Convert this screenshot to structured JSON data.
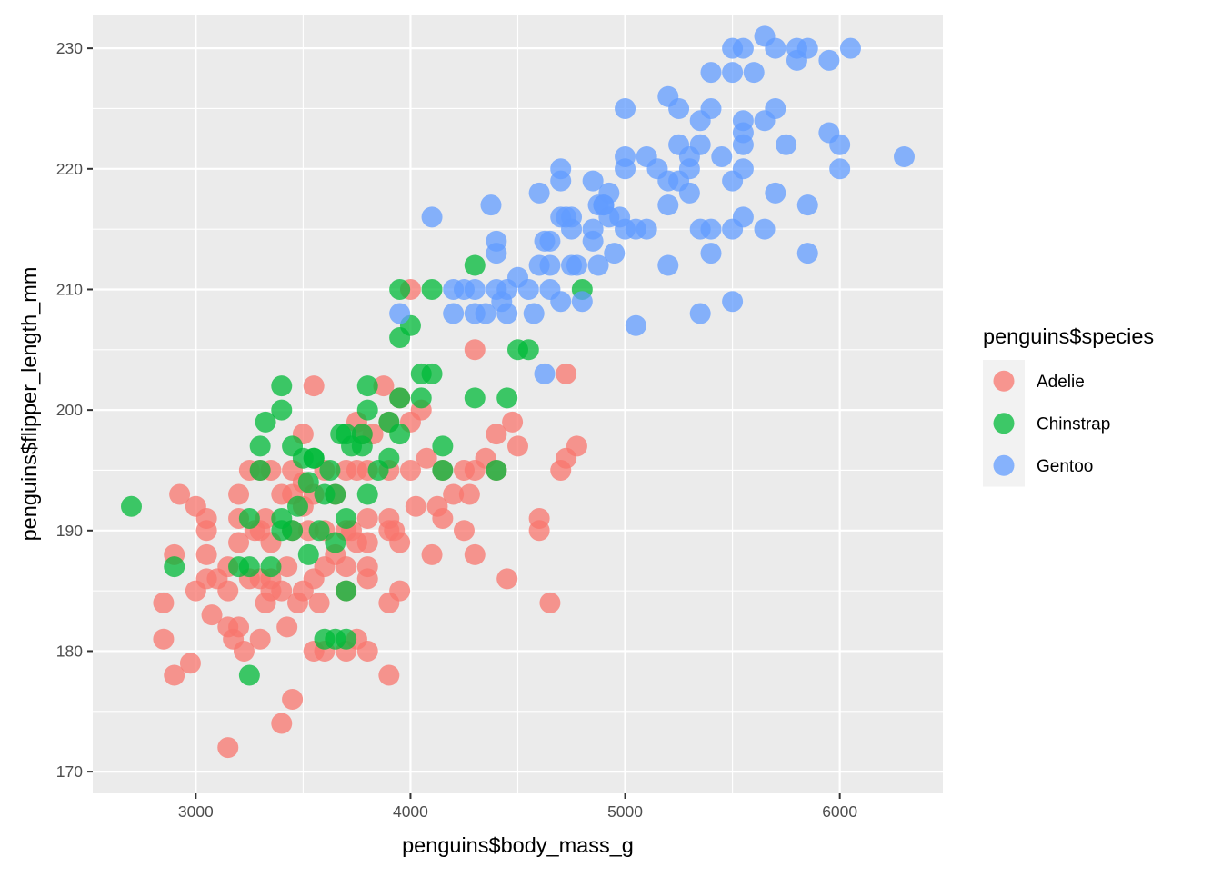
{
  "chart_data": {
    "type": "scatter",
    "title": "",
    "xlabel": "penguins$body_mass_g",
    "ylabel": "penguins$flipper_length_mm",
    "xlim": [
      2520,
      6480
    ],
    "ylim": [
      168.2,
      232.8
    ],
    "xticks": [
      3000,
      4000,
      5000,
      6000
    ],
    "xtick_labels": [
      "3000",
      "4000",
      "5000",
      "6000"
    ],
    "yticks": [
      170,
      180,
      190,
      200,
      210,
      220,
      230
    ],
    "ytick_labels": [
      "170",
      "180",
      "190",
      "200",
      "210",
      "220",
      "230"
    ],
    "grid": true,
    "legend": {
      "title": "penguins$species",
      "placement": "right"
    },
    "colors": {
      "panel_background": "#ebebeb",
      "grid_major": "#ffffff",
      "legend_key_background": "#f2f2f2"
    },
    "point_alpha": 0.75,
    "series": [
      {
        "name": "Adelie",
        "color": "#F8766D",
        "points": [
          [
            2850,
            184
          ],
          [
            2850,
            181
          ],
          [
            2900,
            178
          ],
          [
            2900,
            188
          ],
          [
            2925,
            193
          ],
          [
            2975,
            179
          ],
          [
            3000,
            192
          ],
          [
            3000,
            185
          ],
          [
            3050,
            191
          ],
          [
            3050,
            190
          ],
          [
            3050,
            188
          ],
          [
            3050,
            186
          ],
          [
            3075,
            183
          ],
          [
            3100,
            186
          ],
          [
            3150,
            187
          ],
          [
            3150,
            185
          ],
          [
            3150,
            182
          ],
          [
            3150,
            172
          ],
          [
            3175,
            181
          ],
          [
            3200,
            193
          ],
          [
            3200,
            191
          ],
          [
            3200,
            189
          ],
          [
            3200,
            182
          ],
          [
            3225,
            180
          ],
          [
            3250,
            195
          ],
          [
            3250,
            186
          ],
          [
            3275,
            190
          ],
          [
            3300,
            195
          ],
          [
            3300,
            190
          ],
          [
            3300,
            186
          ],
          [
            3300,
            181
          ],
          [
            3325,
            184
          ],
          [
            3325,
            191
          ],
          [
            3350,
            195
          ],
          [
            3350,
            189
          ],
          [
            3350,
            185
          ],
          [
            3350,
            186
          ],
          [
            3400,
            193
          ],
          [
            3400,
            185
          ],
          [
            3400,
            174
          ],
          [
            3425,
            187
          ],
          [
            3425,
            182
          ],
          [
            3450,
            195
          ],
          [
            3450,
            193
          ],
          [
            3450,
            190
          ],
          [
            3450,
            176
          ],
          [
            3475,
            184
          ],
          [
            3500,
            198
          ],
          [
            3500,
            194
          ],
          [
            3500,
            192
          ],
          [
            3500,
            185
          ],
          [
            3525,
            190
          ],
          [
            3550,
            202
          ],
          [
            3550,
            193
          ],
          [
            3550,
            186
          ],
          [
            3550,
            180
          ],
          [
            3575,
            184
          ],
          [
            3600,
            195
          ],
          [
            3600,
            190
          ],
          [
            3600,
            187
          ],
          [
            3600,
            180
          ],
          [
            3650,
            193
          ],
          [
            3650,
            188
          ],
          [
            3700,
            195
          ],
          [
            3700,
            190
          ],
          [
            3700,
            187
          ],
          [
            3700,
            185
          ],
          [
            3700,
            180
          ],
          [
            3725,
            190
          ],
          [
            3750,
            199
          ],
          [
            3750,
            195
          ],
          [
            3750,
            189
          ],
          [
            3750,
            181
          ],
          [
            3775,
            198
          ],
          [
            3800,
            195
          ],
          [
            3800,
            191
          ],
          [
            3800,
            189
          ],
          [
            3800,
            187
          ],
          [
            3800,
            186
          ],
          [
            3800,
            180
          ],
          [
            3825,
            198
          ],
          [
            3875,
            202
          ],
          [
            3900,
            199
          ],
          [
            3900,
            195
          ],
          [
            3900,
            191
          ],
          [
            3900,
            190
          ],
          [
            3900,
            184
          ],
          [
            3900,
            178
          ],
          [
            3925,
            190
          ],
          [
            3950,
            201
          ],
          [
            3950,
            189
          ],
          [
            3950,
            185
          ],
          [
            4000,
            210
          ],
          [
            4000,
            199
          ],
          [
            4000,
            195
          ],
          [
            4025,
            192
          ],
          [
            4050,
            200
          ],
          [
            4075,
            196
          ],
          [
            4100,
            188
          ],
          [
            4125,
            192
          ],
          [
            4150,
            195
          ],
          [
            4150,
            191
          ],
          [
            4200,
            193
          ],
          [
            4250,
            190
          ],
          [
            4250,
            195
          ],
          [
            4275,
            193
          ],
          [
            4300,
            205
          ],
          [
            4300,
            195
          ],
          [
            4300,
            188
          ],
          [
            4350,
            196
          ],
          [
            4400,
            198
          ],
          [
            4400,
            195
          ],
          [
            4450,
            186
          ],
          [
            4475,
            199
          ],
          [
            4500,
            197
          ],
          [
            4600,
            191
          ],
          [
            4600,
            190
          ],
          [
            4650,
            184
          ],
          [
            4700,
            195
          ],
          [
            4725,
            196
          ],
          [
            4725,
            203
          ],
          [
            4775,
            197
          ]
        ]
      },
      {
        "name": "Chinstrap",
        "color": "#00BA38",
        "points": [
          [
            2700,
            192
          ],
          [
            2900,
            187
          ],
          [
            3200,
            187
          ],
          [
            3250,
            191
          ],
          [
            3250,
            178
          ],
          [
            3250,
            187
          ],
          [
            3300,
            197
          ],
          [
            3300,
            195
          ],
          [
            3325,
            199
          ],
          [
            3350,
            187
          ],
          [
            3400,
            202
          ],
          [
            3400,
            200
          ],
          [
            3400,
            191
          ],
          [
            3400,
            190
          ],
          [
            3450,
            197
          ],
          [
            3450,
            190
          ],
          [
            3475,
            192
          ],
          [
            3500,
            196
          ],
          [
            3525,
            194
          ],
          [
            3525,
            188
          ],
          [
            3550,
            196
          ],
          [
            3575,
            190
          ],
          [
            3600,
            193
          ],
          [
            3600,
            181
          ],
          [
            3625,
            195
          ],
          [
            3650,
            193
          ],
          [
            3650,
            189
          ],
          [
            3650,
            181
          ],
          [
            3675,
            198
          ],
          [
            3700,
            198
          ],
          [
            3700,
            191
          ],
          [
            3700,
            185
          ],
          [
            3700,
            181
          ],
          [
            3725,
            197
          ],
          [
            3775,
            198
          ],
          [
            3775,
            197
          ],
          [
            3800,
            202
          ],
          [
            3800,
            200
          ],
          [
            3800,
            193
          ],
          [
            3850,
            195
          ],
          [
            3900,
            199
          ],
          [
            3900,
            196
          ],
          [
            3950,
            210
          ],
          [
            3950,
            206
          ],
          [
            3950,
            201
          ],
          [
            3950,
            198
          ],
          [
            4000,
            207
          ],
          [
            4050,
            203
          ],
          [
            4050,
            201
          ],
          [
            4100,
            203
          ],
          [
            4100,
            210
          ],
          [
            4150,
            197
          ],
          [
            4150,
            195
          ],
          [
            4300,
            212
          ],
          [
            4300,
            201
          ],
          [
            4400,
            195
          ],
          [
            4450,
            201
          ],
          [
            4500,
            205
          ],
          [
            4550,
            205
          ],
          [
            4800,
            210
          ],
          [
            3550,
            196
          ]
        ]
      },
      {
        "name": "Gentoo",
        "color": "#619CFF",
        "points": [
          [
            3950,
            208
          ],
          [
            4100,
            216
          ],
          [
            4200,
            210
          ],
          [
            4250,
            210
          ],
          [
            4200,
            208
          ],
          [
            4300,
            210
          ],
          [
            4300,
            208
          ],
          [
            4350,
            208
          ],
          [
            4375,
            217
          ],
          [
            4400,
            214
          ],
          [
            4400,
            213
          ],
          [
            4400,
            210
          ],
          [
            4425,
            209
          ],
          [
            4450,
            210
          ],
          [
            4500,
            211
          ],
          [
            4450,
            208
          ],
          [
            4550,
            210
          ],
          [
            4575,
            208
          ],
          [
            4600,
            218
          ],
          [
            4600,
            212
          ],
          [
            4625,
            203
          ],
          [
            4625,
            214
          ],
          [
            4650,
            214
          ],
          [
            4650,
            212
          ],
          [
            4650,
            210
          ],
          [
            4700,
            220
          ],
          [
            4700,
            219
          ],
          [
            4700,
            216
          ],
          [
            4700,
            209
          ],
          [
            4725,
            216
          ],
          [
            4750,
            216
          ],
          [
            4750,
            215
          ],
          [
            4750,
            212
          ],
          [
            4775,
            212
          ],
          [
            4800,
            209
          ],
          [
            4850,
            219
          ],
          [
            4850,
            215
          ],
          [
            4850,
            214
          ],
          [
            4875,
            217
          ],
          [
            4875,
            212
          ],
          [
            4900,
            217
          ],
          [
            4925,
            218
          ],
          [
            4925,
            216
          ],
          [
            4950,
            213
          ],
          [
            4975,
            216
          ],
          [
            5000,
            225
          ],
          [
            5000,
            221
          ],
          [
            5000,
            220
          ],
          [
            5000,
            215
          ],
          [
            5050,
            215
          ],
          [
            5050,
            207
          ],
          [
            5100,
            221
          ],
          [
            5100,
            215
          ],
          [
            5150,
            220
          ],
          [
            5200,
            226
          ],
          [
            5200,
            219
          ],
          [
            5200,
            217
          ],
          [
            5200,
            212
          ],
          [
            5250,
            225
          ],
          [
            5250,
            222
          ],
          [
            5250,
            219
          ],
          [
            5300,
            221
          ],
          [
            5300,
            220
          ],
          [
            5300,
            218
          ],
          [
            5350,
            224
          ],
          [
            5350,
            222
          ],
          [
            5350,
            215
          ],
          [
            5400,
            228
          ],
          [
            5400,
            225
          ],
          [
            5400,
            215
          ],
          [
            5400,
            213
          ],
          [
            5450,
            221
          ],
          [
            5500,
            230
          ],
          [
            5500,
            228
          ],
          [
            5500,
            219
          ],
          [
            5500,
            215
          ],
          [
            5550,
            230
          ],
          [
            5550,
            224
          ],
          [
            5550,
            223
          ],
          [
            5550,
            222
          ],
          [
            5550,
            220
          ],
          [
            5550,
            216
          ],
          [
            5600,
            228
          ],
          [
            5650,
            231
          ],
          [
            5650,
            224
          ],
          [
            5650,
            215
          ],
          [
            5700,
            230
          ],
          [
            5700,
            225
          ],
          [
            5700,
            218
          ],
          [
            5750,
            222
          ],
          [
            5800,
            230
          ],
          [
            5800,
            229
          ],
          [
            5850,
            230
          ],
          [
            5850,
            217
          ],
          [
            5950,
            229
          ],
          [
            5950,
            223
          ],
          [
            6000,
            222
          ],
          [
            6000,
            220
          ],
          [
            6050,
            230
          ],
          [
            6300,
            221
          ],
          [
            5850,
            213
          ],
          [
            5500,
            209
          ],
          [
            5350,
            208
          ],
          [
            4900,
            217
          ]
        ]
      }
    ]
  }
}
